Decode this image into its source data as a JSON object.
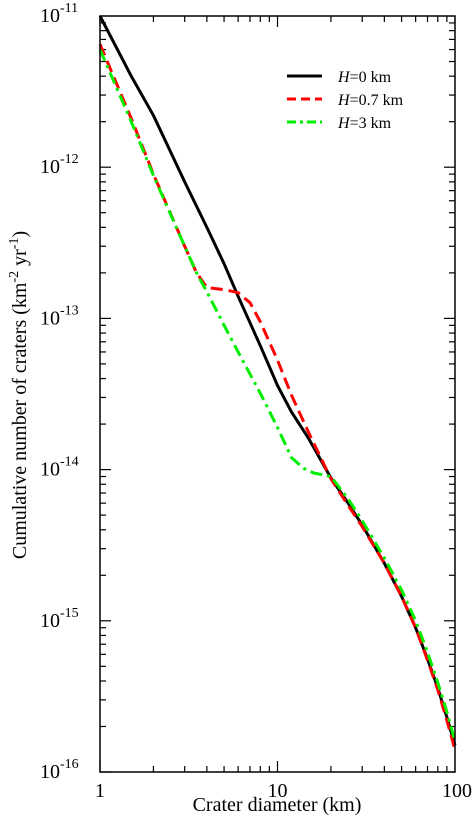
{
  "chart_data": {
    "type": "line",
    "xlabel": "Crater diameter (km)",
    "ylabel": {
      "pre": "Cumulative number of craters (km",
      "exp1": "-2",
      "mid": " yr",
      "exp2": "-1",
      "post": ")"
    },
    "x_scale": "log",
    "y_scale": "log",
    "xlim": [
      1,
      100
    ],
    "ylim": [
      1e-16,
      1e-11
    ],
    "x_ticks": [
      {
        "value": 1,
        "label": "1"
      },
      {
        "value": 10,
        "label": "10"
      },
      {
        "value": 100,
        "label": "100"
      }
    ],
    "y_ticks": [
      {
        "value": 1e-16,
        "base": "10",
        "exp": "-16"
      },
      {
        "value": 1e-15,
        "base": "10",
        "exp": "-15"
      },
      {
        "value": 1e-14,
        "base": "10",
        "exp": "-14"
      },
      {
        "value": 1e-13,
        "base": "10",
        "exp": "-13"
      },
      {
        "value": 1e-12,
        "base": "10",
        "exp": "-12"
      },
      {
        "value": 1e-11,
        "base": "10",
        "exp": "-11"
      }
    ],
    "grid": false,
    "legend_position": "top-right",
    "series": [
      {
        "name_var": "H",
        "name_rest": "=0 km",
        "color": "#000000",
        "dash": "solid",
        "x": [
          1.0,
          1.5,
          2.0,
          3.0,
          4.0,
          5.0,
          6.0,
          8.0,
          10.0,
          12.0,
          15.0,
          20.0,
          25.0,
          30.0,
          40.0,
          50.0,
          60.0,
          70.0,
          80.0,
          90.0,
          100.0
        ],
        "y": [
          1e-11,
          4e-12,
          2.2e-12,
          8e-13,
          4e-13,
          2.3e-13,
          1.4e-13,
          6.6e-14,
          3.6e-14,
          2.4e-14,
          1.6e-14,
          8.8e-15,
          6e-15,
          4.3e-15,
          2.4e-15,
          1.45e-15,
          9e-16,
          5.6e-16,
          3.6e-16,
          2.3e-16,
          1.5e-16
        ]
      },
      {
        "name_var": "H",
        "name_rest": "=0.7 km",
        "color": "#ff0000",
        "dash": "dashed",
        "x": [
          1.0,
          1.5,
          2.0,
          3.0,
          3.5,
          4.0,
          5.0,
          6.0,
          7.0,
          8.0,
          10.0,
          12.0,
          15.0,
          20.0,
          25.0,
          30.0,
          40.0,
          50.0,
          60.0,
          70.0,
          80.0,
          90.0,
          100.0
        ],
        "y": [
          6.5e-12,
          2.1e-12,
          9e-13,
          3e-13,
          2e-13,
          1.6e-13,
          1.55e-13,
          1.48e-13,
          1.27e-13,
          9.5e-14,
          5.3e-14,
          3.1e-14,
          1.75e-14,
          8.7e-15,
          5.8e-15,
          4.2e-15,
          2.4e-15,
          1.45e-15,
          9e-16,
          5.5e-16,
          3.5e-16,
          2.2e-16,
          1.4e-16
        ]
      },
      {
        "name_var": "H",
        "name_rest": "=3 km",
        "color": "#00ee00",
        "dash": "dash-dot",
        "x": [
          1.0,
          1.5,
          2.0,
          3.0,
          3.5,
          4.0,
          5.0,
          6.0,
          8.0,
          10.0,
          12.0,
          14.0,
          16.0,
          20.0,
          25.0,
          30.0,
          40.0,
          50.0,
          60.0,
          70.0,
          80.0,
          90.0,
          100.0
        ],
        "y": [
          6e-12,
          2e-12,
          8.8e-13,
          3e-13,
          2e-13,
          1.5e-13,
          9e-14,
          6e-14,
          3.2e-14,
          1.9e-14,
          1.2e-14,
          1.02e-14,
          9.5e-15,
          9e-15,
          6.4e-15,
          4.6e-15,
          2.6e-15,
          1.6e-15,
          1e-15,
          6.2e-16,
          3.9e-16,
          2.5e-16,
          1.6e-16
        ]
      }
    ]
  }
}
